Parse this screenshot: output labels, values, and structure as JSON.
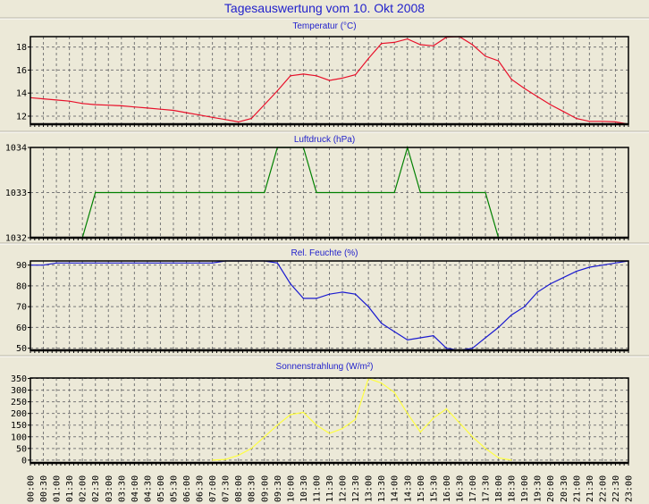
{
  "title": "Tagesauswertung vom 10. Okt 2008",
  "colors": {
    "background": "#ece9d8",
    "title": "#2222cc",
    "grid": "#777777"
  },
  "x_ticks": [
    "00:00",
    "00:30",
    "01:00",
    "01:30",
    "02:00",
    "02:30",
    "03:00",
    "03:30",
    "04:00",
    "04:30",
    "05:00",
    "05:30",
    "06:00",
    "06:30",
    "07:00",
    "07:30",
    "08:00",
    "08:30",
    "09:00",
    "09:30",
    "10:00",
    "10:30",
    "11:00",
    "11:30",
    "12:00",
    "12:30",
    "13:00",
    "13:30",
    "14:00",
    "14:30",
    "15:00",
    "15:30",
    "16:00",
    "16:30",
    "17:00",
    "17:30",
    "18:00",
    "18:30",
    "19:00",
    "19:30",
    "20:00",
    "20:30",
    "21:00",
    "21:30",
    "22:00",
    "22:30",
    "23:00"
  ],
  "chart_data": [
    {
      "type": "line",
      "title": "Temperatur (°C)",
      "color": "#e8102a",
      "ylim": [
        11.3,
        18.9
      ],
      "y_ticks": [
        "12",
        "14",
        "16",
        "18"
      ],
      "grid": true,
      "values": [
        13.6,
        13.5,
        13.4,
        13.3,
        13.1,
        13.0,
        12.95,
        12.9,
        12.8,
        12.7,
        12.6,
        12.5,
        12.3,
        12.1,
        11.9,
        11.7,
        11.5,
        11.8,
        13.0,
        14.2,
        15.5,
        15.65,
        15.5,
        15.1,
        15.3,
        15.6,
        17.0,
        18.3,
        18.4,
        18.7,
        18.2,
        18.1,
        18.85,
        18.95,
        18.2,
        17.2,
        16.8,
        15.2,
        14.4,
        13.7,
        13.0,
        12.4,
        11.8,
        11.55,
        11.55,
        11.5,
        11.3
      ]
    },
    {
      "type": "line",
      "title": "Luftdruck (hPa)",
      "color": "#008000",
      "ylim": [
        1032,
        1034
      ],
      "y_ticks": [
        "1032",
        "1033",
        "1034"
      ],
      "grid": true,
      "values": [
        1032,
        1032,
        1032,
        1032,
        1032,
        1033,
        1033,
        1033,
        1033,
        1033,
        1033,
        1033,
        1033,
        1033,
        1033,
        1033,
        1033,
        1033,
        1033,
        1034,
        1034,
        1034,
        1033,
        1033,
        1033,
        1033,
        1033,
        1033,
        1033,
        1034,
        1033,
        1033,
        1033,
        1033,
        1033,
        1033,
        1032,
        1032,
        1032,
        1032,
        1032,
        1032,
        1032,
        1032,
        1032,
        1032,
        1032
      ]
    },
    {
      "type": "line",
      "title": "Rel. Feuchte (%)",
      "color": "#1a1ad0",
      "ylim": [
        49,
        92
      ],
      "y_ticks": [
        "50",
        "60",
        "70",
        "80",
        "90"
      ],
      "grid": true,
      "values": [
        90,
        90,
        91,
        91,
        91,
        91,
        91,
        91,
        91,
        91,
        91,
        91,
        91,
        91,
        91,
        92,
        92,
        92,
        92,
        91,
        81,
        74,
        74,
        76,
        77,
        76,
        70,
        62,
        58,
        54,
        55,
        56,
        50,
        49,
        50,
        55,
        60,
        66,
        70,
        77,
        81,
        84,
        87,
        89,
        90,
        91,
        92
      ]
    },
    {
      "type": "line",
      "title": "Sonnenstrahlung (W/m²)",
      "color": "#ffff40",
      "ylim": [
        -12,
        352
      ],
      "y_ticks": [
        "0",
        "50",
        "100",
        "150",
        "200",
        "250",
        "300",
        "350"
      ],
      "grid": true,
      "values": [
        null,
        null,
        null,
        null,
        null,
        null,
        null,
        null,
        null,
        null,
        null,
        null,
        null,
        null,
        0,
        3,
        20,
        50,
        100,
        150,
        195,
        205,
        150,
        115,
        135,
        175,
        350,
        330,
        290,
        200,
        120,
        180,
        220,
        160,
        100,
        50,
        10,
        0,
        null,
        null,
        null,
        null,
        null,
        null,
        null,
        null,
        null
      ]
    }
  ]
}
